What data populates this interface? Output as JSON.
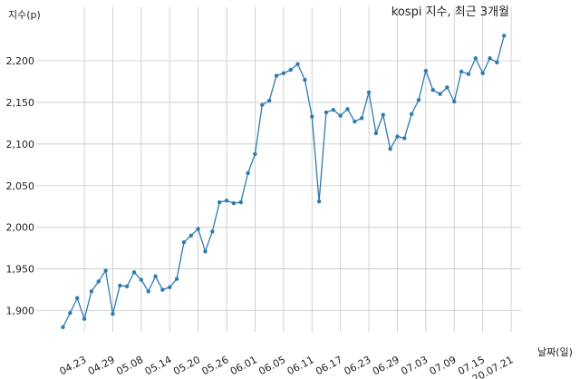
{
  "chart_data": {
    "type": "line",
    "title": "kospi 지수, 최근 3개월",
    "ylabel": "지수(p)",
    "xlabel": "날짜(일)",
    "ylim": [
      1868,
      2240
    ],
    "yticks": [
      1900,
      1950,
      2000,
      2050,
      2100,
      2150,
      2200
    ],
    "ytick_labels": [
      "1,900",
      "1,950",
      "2,000",
      "2,050",
      "2,100",
      "2,150",
      "2,200"
    ],
    "grid": true,
    "line_color": "#2e7bb0",
    "xtick_labels": [
      "04.23",
      "04.29",
      "05.08",
      "05.14",
      "05.20",
      "05.26",
      "06.01",
      "06.05",
      "06.11",
      "06.17",
      "06.23",
      "06.29",
      "07.03",
      "07.09",
      "07.15",
      "20.07.21"
    ],
    "xtick_indices": [
      3,
      7,
      11,
      15,
      19,
      23,
      27,
      31,
      35,
      39,
      43,
      47,
      51,
      55,
      59,
      63
    ],
    "series": [
      {
        "values": [
          1880,
          1897,
          1915,
          1890,
          1923,
          1935,
          1948,
          1896,
          1930,
          1929,
          1946,
          1937,
          1923,
          1941,
          1925,
          1928,
          1938,
          1982,
          1990,
          1998,
          1971,
          1995,
          2030,
          2032,
          2029,
          2030,
          2065,
          2088,
          2147,
          2152,
          2182,
          2185,
          2189,
          2196,
          2177,
          2133,
          2031,
          2138,
          2141,
          2134,
          2142,
          2127,
          2131,
          2162,
          2113,
          2135,
          2094,
          2109,
          2107,
          2136,
          2153,
          2188,
          2165,
          2160,
          2168,
          2151,
          2187,
          2184,
          2203,
          2185,
          2203,
          2198,
          2230
        ]
      }
    ]
  }
}
